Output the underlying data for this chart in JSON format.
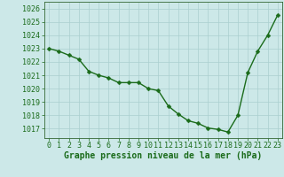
{
  "x": [
    0,
    1,
    2,
    3,
    4,
    5,
    6,
    7,
    8,
    9,
    10,
    11,
    12,
    13,
    14,
    15,
    16,
    17,
    18,
    19,
    20,
    21,
    22,
    23
  ],
  "y": [
    1023.0,
    1022.8,
    1022.5,
    1022.2,
    1021.3,
    1021.0,
    1020.8,
    1020.45,
    1020.45,
    1020.45,
    1020.0,
    1019.85,
    1018.7,
    1018.1,
    1017.6,
    1017.4,
    1017.05,
    1016.95,
    1016.75,
    1018.0,
    1021.2,
    1022.8,
    1024.0,
    1025.5
  ],
  "line_color": "#1a6b1a",
  "marker": "D",
  "marker_size": 2.5,
  "bg_color": "#cce8e8",
  "grid_color": "#aacfcf",
  "xlabel": "Graphe pression niveau de la mer (hPa)",
  "xlabel_color": "#1a6b1a",
  "xlabel_fontsize": 7,
  "tick_color": "#1a6b1a",
  "tick_fontsize": 6,
  "ylim_min": 1016.3,
  "ylim_max": 1026.5,
  "yticks": [
    1017,
    1018,
    1019,
    1020,
    1021,
    1022,
    1023,
    1024,
    1025,
    1026
  ],
  "xticks": [
    0,
    1,
    2,
    3,
    4,
    5,
    6,
    7,
    8,
    9,
    10,
    11,
    12,
    13,
    14,
    15,
    16,
    17,
    18,
    19,
    20,
    21,
    22,
    23
  ],
  "line_width": 1.0,
  "spine_color": "#336633"
}
